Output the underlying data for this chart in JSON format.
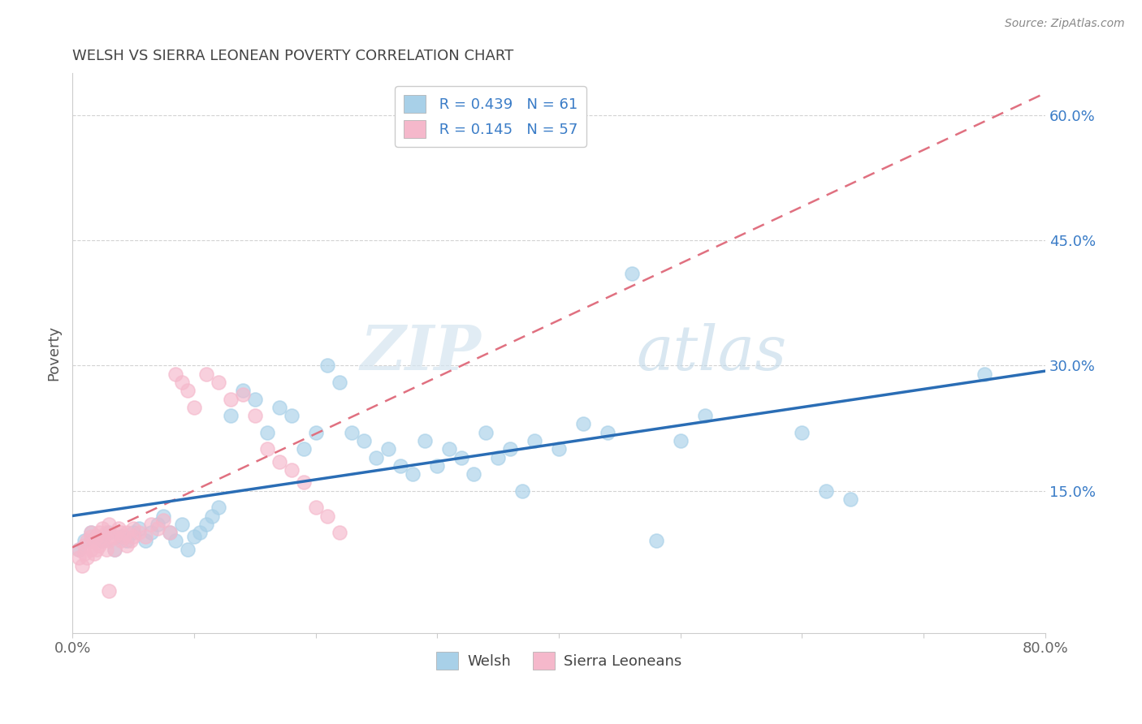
{
  "title": "WELSH VS SIERRA LEONEAN POVERTY CORRELATION CHART",
  "source": "Source: ZipAtlas.com",
  "ylabel": "Poverty",
  "x_min": 0.0,
  "x_max": 0.8,
  "y_min": -0.02,
  "y_max": 0.65,
  "y_tick_right": [
    0.15,
    0.3,
    0.45,
    0.6
  ],
  "y_tick_right_labels": [
    "15.0%",
    "30.0%",
    "45.0%",
    "60.0%"
  ],
  "legend_r_welsh": "R = 0.439",
  "legend_n_welsh": "N = 61",
  "legend_r_sierra": "R = 0.145",
  "legend_n_sierra": "N = 57",
  "legend_label_welsh": "Welsh",
  "legend_label_sierra": "Sierra Leoneans",
  "color_welsh": "#a8d0e8",
  "color_sierra": "#f5b8cb",
  "color_welsh_line": "#2a6db5",
  "color_sierra_line": "#e07080",
  "color_dashed_line": "#c8c8c8",
  "background_color": "#ffffff",
  "watermark_zip": "ZIP",
  "watermark_atlas": "atlas",
  "welsh_x": [
    0.005,
    0.01,
    0.015,
    0.02,
    0.025,
    0.03,
    0.035,
    0.04,
    0.045,
    0.05,
    0.055,
    0.06,
    0.065,
    0.07,
    0.075,
    0.08,
    0.085,
    0.09,
    0.095,
    0.1,
    0.105,
    0.11,
    0.115,
    0.12,
    0.13,
    0.14,
    0.15,
    0.16,
    0.17,
    0.18,
    0.19,
    0.2,
    0.21,
    0.22,
    0.23,
    0.24,
    0.25,
    0.26,
    0.27,
    0.28,
    0.29,
    0.3,
    0.31,
    0.32,
    0.33,
    0.34,
    0.35,
    0.36,
    0.37,
    0.38,
    0.4,
    0.42,
    0.44,
    0.46,
    0.48,
    0.5,
    0.52,
    0.6,
    0.62,
    0.64,
    0.75
  ],
  "welsh_y": [
    0.08,
    0.09,
    0.1,
    0.095,
    0.09,
    0.1,
    0.08,
    0.095,
    0.09,
    0.1,
    0.105,
    0.09,
    0.1,
    0.11,
    0.12,
    0.1,
    0.09,
    0.11,
    0.08,
    0.095,
    0.1,
    0.11,
    0.12,
    0.13,
    0.24,
    0.27,
    0.26,
    0.22,
    0.25,
    0.24,
    0.2,
    0.22,
    0.3,
    0.28,
    0.22,
    0.21,
    0.19,
    0.2,
    0.18,
    0.17,
    0.21,
    0.18,
    0.2,
    0.19,
    0.17,
    0.22,
    0.19,
    0.2,
    0.15,
    0.21,
    0.2,
    0.23,
    0.22,
    0.41,
    0.09,
    0.21,
    0.24,
    0.22,
    0.15,
    0.14,
    0.29
  ],
  "sierra_x": [
    0.005,
    0.005,
    0.008,
    0.01,
    0.01,
    0.012,
    0.012,
    0.015,
    0.015,
    0.015,
    0.018,
    0.018,
    0.02,
    0.02,
    0.022,
    0.022,
    0.025,
    0.025,
    0.028,
    0.028,
    0.03,
    0.03,
    0.032,
    0.035,
    0.035,
    0.038,
    0.04,
    0.04,
    0.042,
    0.045,
    0.045,
    0.048,
    0.05,
    0.05,
    0.055,
    0.06,
    0.065,
    0.07,
    0.075,
    0.08,
    0.085,
    0.09,
    0.095,
    0.1,
    0.11,
    0.12,
    0.13,
    0.14,
    0.15,
    0.16,
    0.17,
    0.18,
    0.19,
    0.2,
    0.21,
    0.22,
    0.03
  ],
  "sierra_y": [
    0.08,
    0.07,
    0.06,
    0.075,
    0.085,
    0.09,
    0.07,
    0.08,
    0.095,
    0.1,
    0.075,
    0.09,
    0.08,
    0.095,
    0.085,
    0.1,
    0.09,
    0.105,
    0.08,
    0.1,
    0.09,
    0.11,
    0.095,
    0.08,
    0.095,
    0.105,
    0.09,
    0.1,
    0.095,
    0.085,
    0.1,
    0.09,
    0.095,
    0.105,
    0.1,
    0.095,
    0.11,
    0.105,
    0.115,
    0.1,
    0.29,
    0.28,
    0.27,
    0.25,
    0.29,
    0.28,
    0.26,
    0.265,
    0.24,
    0.2,
    0.185,
    0.175,
    0.16,
    0.13,
    0.12,
    0.1,
    0.03
  ]
}
